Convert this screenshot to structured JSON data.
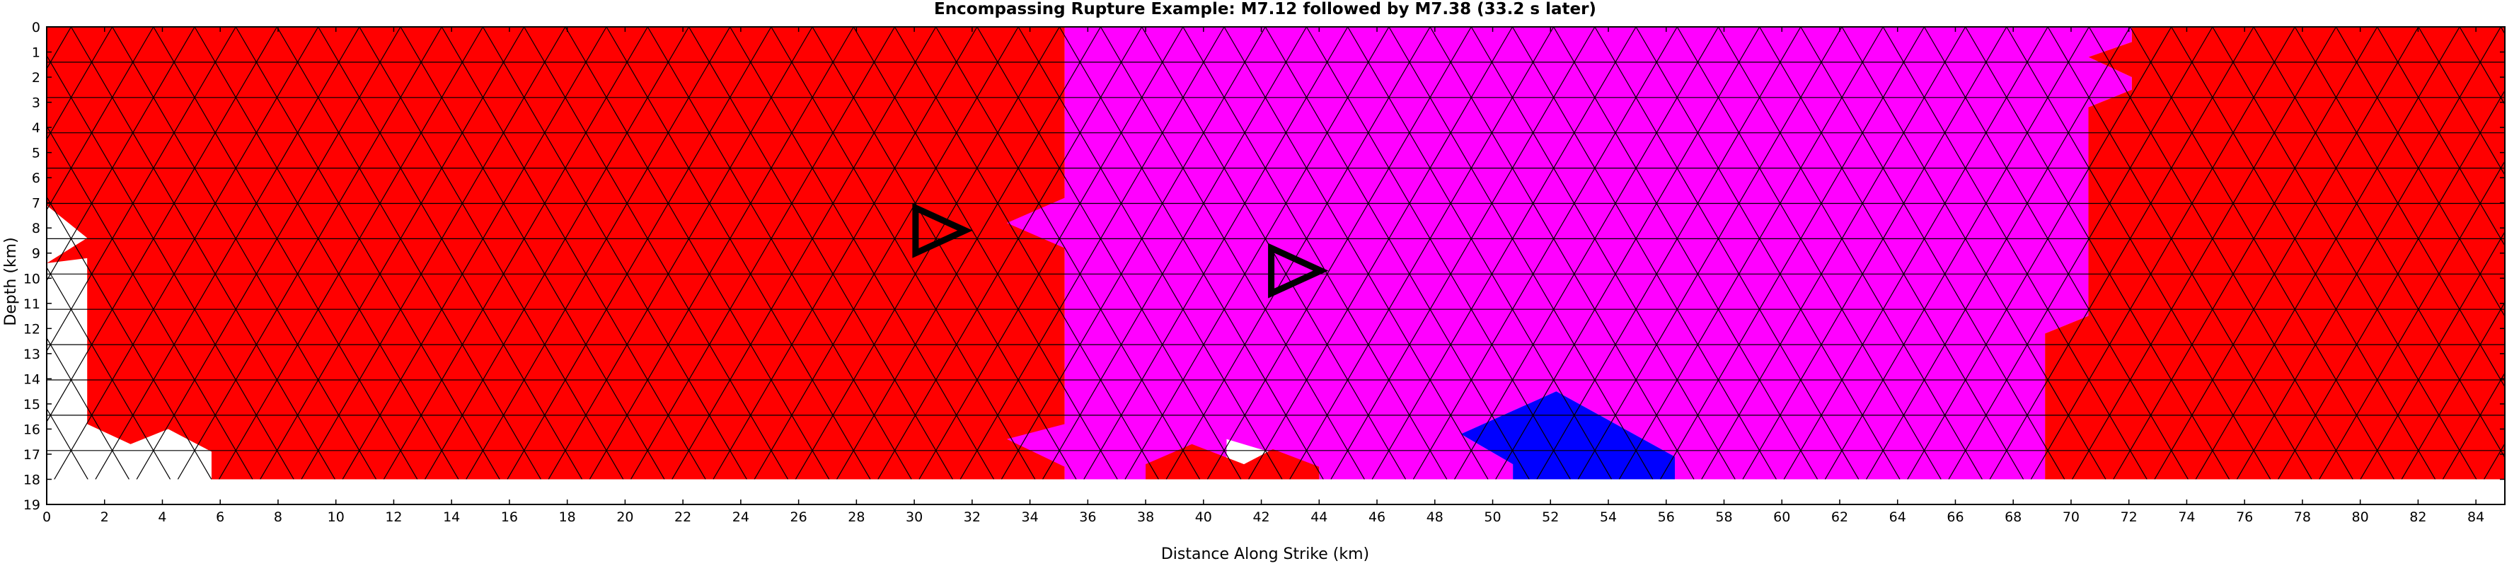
{
  "chart_data": {
    "type": "heatmap",
    "title": "Encompassing Rupture Example: M7.12 followed by M7.38 (33.2 s later)",
    "xlabel": "Distance Along Strike (km)",
    "ylabel": "Depth (km)",
    "xlim": [
      0,
      85
    ],
    "ylim": [
      0,
      19
    ],
    "y_inverted": true,
    "grid": false,
    "mesh_extent": {
      "x": [
        0,
        85
      ],
      "depth": [
        0,
        18
      ]
    },
    "xticks": [
      0,
      2,
      4,
      6,
      8,
      10,
      12,
      14,
      16,
      18,
      20,
      22,
      24,
      26,
      28,
      30,
      32,
      34,
      36,
      38,
      40,
      42,
      44,
      46,
      48,
      50,
      52,
      54,
      56,
      58,
      60,
      62,
      64,
      66,
      68,
      70,
      72,
      74,
      76,
      78,
      80,
      82,
      84
    ],
    "yticks": [
      0,
      1,
      2,
      3,
      4,
      5,
      6,
      7,
      8,
      9,
      10,
      11,
      12,
      13,
      14,
      15,
      16,
      17,
      18,
      19
    ],
    "colors": {
      "first_rupture": "#ff0000",
      "second_rupture": "#ff00ff",
      "both_ruptures": "#0000ff",
      "unruptured": "#ffffff",
      "mesh_lines": "#000000",
      "hypocenter_marker": "#000000"
    },
    "regions": [
      {
        "rupture": "first",
        "color": "#ff0000",
        "polygon": [
          [
            0,
            0
          ],
          [
            35.2,
            0
          ],
          [
            35.2,
            17.5
          ],
          [
            33.2,
            16.4
          ],
          [
            35.2,
            15.8
          ],
          [
            35.2,
            8.8
          ],
          [
            33.2,
            7.8
          ],
          [
            35.2,
            6.8
          ],
          [
            35.2,
            18
          ],
          [
            5.7,
            18
          ],
          [
            5.7,
            16.9
          ],
          [
            4.2,
            16
          ],
          [
            2.9,
            16.6
          ],
          [
            1.4,
            15.8
          ],
          [
            1.4,
            11.5
          ],
          [
            1.4,
            9.2
          ],
          [
            0,
            9.4
          ],
          [
            1.4,
            8.4
          ],
          [
            0,
            7.1
          ]
        ]
      },
      {
        "rupture": "second",
        "color": "#ff00ff",
        "polygon": [
          [
            35.2,
            0
          ],
          [
            72.1,
            0
          ],
          [
            72.1,
            0.6
          ],
          [
            70.6,
            1.2
          ],
          [
            72.1,
            2
          ],
          [
            72.1,
            2.5
          ],
          [
            70.6,
            3.2
          ],
          [
            70.6,
            11.5
          ],
          [
            69.1,
            12.2
          ],
          [
            69.1,
            18
          ],
          [
            56.3,
            18
          ],
          [
            56.3,
            17.1
          ],
          [
            52.2,
            14.5
          ],
          [
            48.9,
            16.2
          ],
          [
            50.7,
            17.4
          ],
          [
            50.7,
            18
          ],
          [
            44,
            18
          ],
          [
            44,
            17.5
          ],
          [
            40.8,
            16.4
          ],
          [
            40.8,
            17.6
          ],
          [
            38,
            18
          ],
          [
            35.2,
            18
          ],
          [
            35.2,
            17.5
          ],
          [
            33.2,
            16.4
          ],
          [
            35.2,
            15.8
          ],
          [
            35.2,
            8.8
          ],
          [
            33.2,
            7.8
          ],
          [
            35.2,
            6.8
          ]
        ]
      },
      {
        "rupture": "first",
        "color": "#ff0000",
        "polygon": [
          [
            38,
            18
          ],
          [
            38,
            17.4
          ],
          [
            39.6,
            16.6
          ],
          [
            41.4,
            17.4
          ],
          [
            42.4,
            16.8
          ],
          [
            44,
            17.5
          ],
          [
            44,
            18
          ]
        ]
      },
      {
        "rupture": "first",
        "color": "#ff0000",
        "polygon": [
          [
            72.1,
            0
          ],
          [
            85,
            0
          ],
          [
            85,
            18
          ],
          [
            69.1,
            18
          ],
          [
            69.1,
            12.2
          ],
          [
            70.6,
            11.5
          ],
          [
            70.6,
            3.2
          ],
          [
            72.1,
            2.5
          ],
          [
            72.1,
            2
          ],
          [
            70.6,
            1.2
          ],
          [
            72.1,
            0.6
          ]
        ]
      },
      {
        "rupture": "both",
        "color": "#0000ff",
        "polygon": [
          [
            48.9,
            16.2
          ],
          [
            52.2,
            14.5
          ],
          [
            56.3,
            17.1
          ],
          [
            56.3,
            18
          ],
          [
            50.7,
            18
          ],
          [
            50.7,
            17.4
          ]
        ]
      }
    ],
    "hypocenters": [
      {
        "event": "M7.12",
        "x": 30.9,
        "depth": 8.1,
        "symbol": "triangle-right"
      },
      {
        "event": "M7.38",
        "x": 43.2,
        "depth": 9.7,
        "symbol": "triangle-right"
      }
    ]
  }
}
